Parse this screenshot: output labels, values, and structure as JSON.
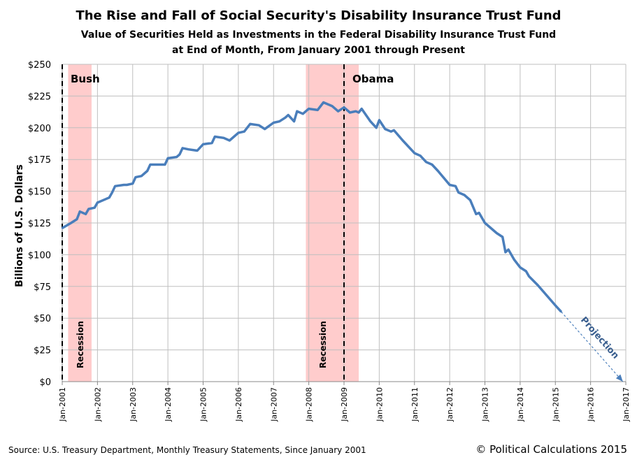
{
  "chart_data": {
    "type": "line",
    "title": "The Rise and Fall of Social Security's Disability Insurance Trust Fund",
    "subtitle": [
      "Value of Securities Held as Investments in the Federal Disability Insurance Trust Fund",
      "at End of Month, From January 2001 through Present"
    ],
    "ylabel": "Billions of U.S. Dollars",
    "xlabel": "",
    "ylim": [
      0,
      250
    ],
    "xlim": [
      "2001-01",
      "2017-01"
    ],
    "yticks": [
      "$0",
      "$25",
      "$50",
      "$75",
      "$100",
      "$125",
      "$150",
      "$175",
      "$200",
      "$225",
      "$250"
    ],
    "ytick_values": [
      0,
      25,
      50,
      75,
      100,
      125,
      150,
      175,
      200,
      225,
      250
    ],
    "xticks": [
      "Jan-2001",
      "Jan-2002",
      "Jan-2003",
      "Jan-2004",
      "Jan-2005",
      "Jan-2006",
      "Jan-2007",
      "Jan-2008",
      "Jan-2009",
      "Jan-2010",
      "Jan-2011",
      "Jan-2012",
      "Jan-2013",
      "Jan-2014",
      "Jan-2015",
      "Jan-2016",
      "Jan-2017"
    ],
    "grid": true,
    "series_color": "#4a7ebb",
    "series": [
      {
        "x": [
          "2001-01",
          "2001-04",
          "2001-06",
          "2001-07",
          "2001-09",
          "2001-10",
          "2001-12",
          "2002-01",
          "2002-03",
          "2002-05",
          "2002-06",
          "2002-07",
          "2002-10",
          "2002-11",
          "2003-01",
          "2003-02",
          "2003-04",
          "2003-06",
          "2003-07",
          "2003-12",
          "2004-01",
          "2004-04",
          "2004-05",
          "2004-06",
          "2004-08",
          "2004-11",
          "2005-01",
          "2005-04",
          "2005-05",
          "2005-08",
          "2005-10",
          "2006-01",
          "2006-03",
          "2006-05",
          "2006-08",
          "2006-10",
          "2007-01",
          "2007-03",
          "2007-05",
          "2007-06",
          "2007-08",
          "2007-09",
          "2007-11",
          "2008-01",
          "2008-04",
          "2008-06",
          "2008-09",
          "2008-11",
          "2009-01",
          "2009-03",
          "2009-05",
          "2009-06",
          "2009-07",
          "2009-10",
          "2009-12",
          "2010-01",
          "2010-03",
          "2010-05",
          "2010-06",
          "2010-09",
          "2011-01",
          "2011-03",
          "2011-05",
          "2011-07",
          "2011-09",
          "2012-01",
          "2012-03",
          "2012-04",
          "2012-06",
          "2012-08",
          "2012-10",
          "2012-11",
          "2013-01",
          "2013-05",
          "2013-07",
          "2013-08",
          "2013-09",
          "2013-11",
          "2014-01",
          "2014-03",
          "2014-04",
          "2014-07",
          "2014-10",
          "2015-01",
          "2015-03"
        ],
        "y": [
          121,
          125,
          128,
          134,
          132,
          136,
          137,
          141,
          143,
          145,
          149,
          154,
          155,
          155,
          156,
          161,
          162,
          166,
          171,
          171,
          176,
          177,
          179,
          184,
          183,
          182,
          187,
          188,
          193,
          192,
          190,
          196,
          197,
          203,
          202,
          199,
          204,
          205,
          208,
          210,
          205,
          213,
          211,
          215,
          214,
          220,
          217,
          213,
          216,
          212,
          213,
          212,
          215,
          205,
          200,
          206,
          199,
          197,
          198,
          190,
          180,
          178,
          173,
          171,
          166,
          155,
          154,
          149,
          147,
          143,
          132,
          133,
          125,
          117,
          114,
          102,
          104,
          96,
          90,
          87,
          83,
          76,
          68,
          60,
          55
        ]
      }
    ],
    "projection": {
      "label": "Projection",
      "x": [
        "2015-03",
        "2016-12"
      ],
      "y": [
        55,
        0
      ],
      "color": "#4a7ebb"
    },
    "recessions": [
      {
        "label": "Recession",
        "start": "2001-03",
        "end": "2001-11",
        "color": "#ffcccc"
      },
      {
        "label": "Recession",
        "start": "2007-12",
        "end": "2009-06",
        "color": "#ffcccc"
      }
    ],
    "administrations": [
      {
        "label": "Bush",
        "start": "2001-01"
      },
      {
        "label": "Obama",
        "start": "2009-01"
      }
    ]
  },
  "footer": {
    "source": "Source: U.S. Treasury Department,  Monthly Treasury Statements, Since January 2001",
    "copyright": "© Political Calculations 2015"
  }
}
